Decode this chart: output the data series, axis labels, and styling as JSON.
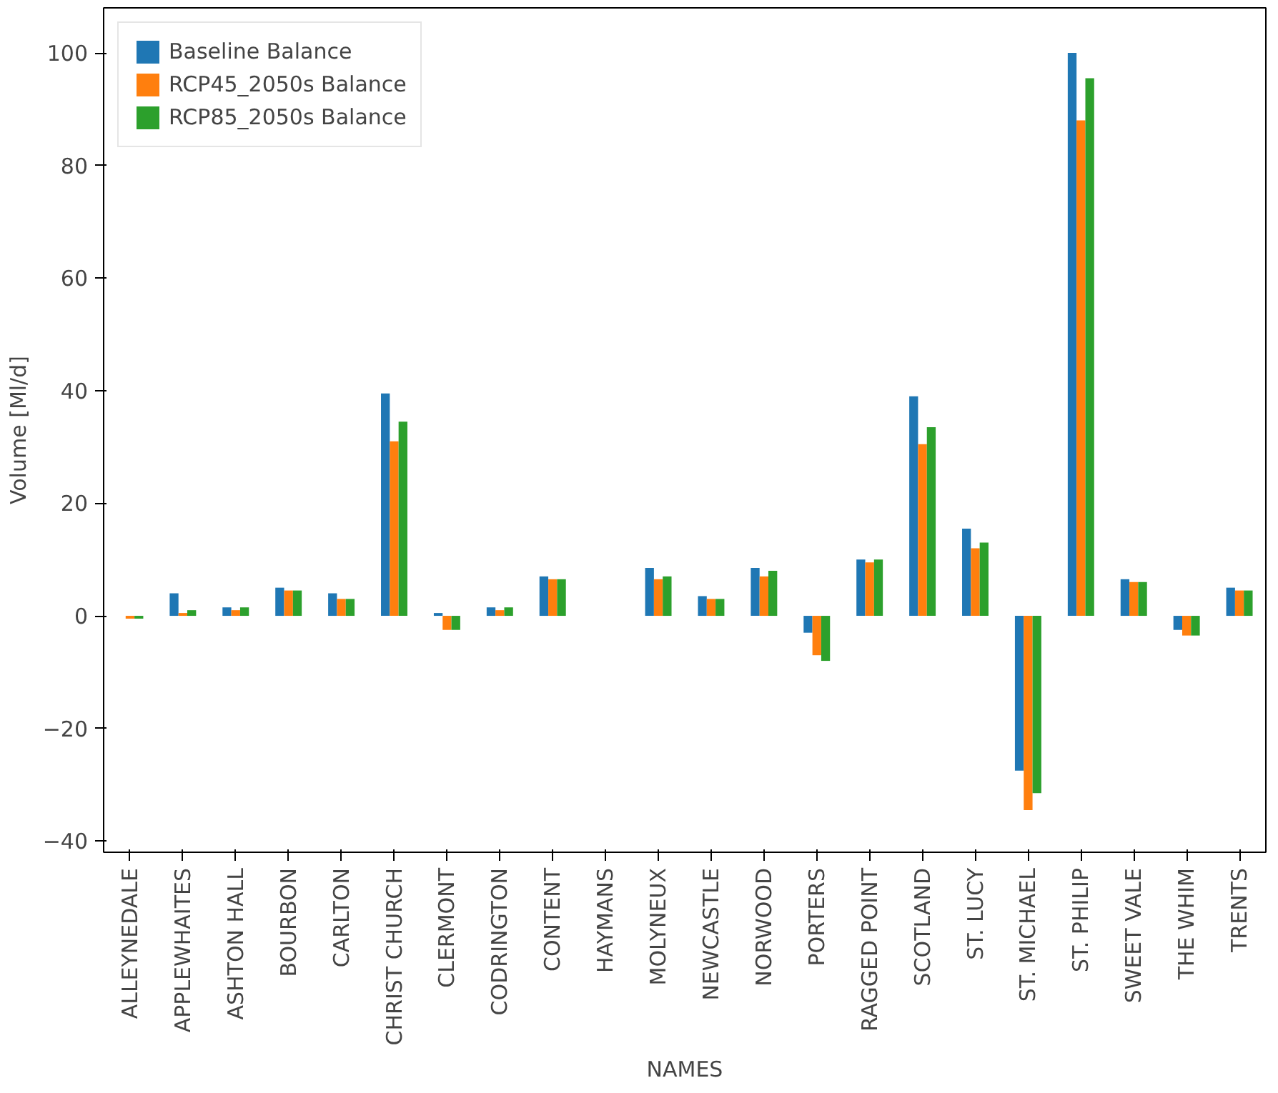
{
  "chart_data": {
    "type": "bar",
    "xlabel": "NAMES",
    "ylabel": "Volume [Ml/d]",
    "categories": [
      "ALLEYNEDALE",
      "APPLEWHAITES",
      "ASHTON HALL",
      "BOURBON",
      "CARLTON",
      "CHRIST CHURCH",
      "CLERMONT",
      "CODRINGTON",
      "CONTENT",
      "HAYMANS",
      "MOLYNEUX",
      "NEWCASTLE",
      "NORWOOD",
      "PORTERS",
      "RAGGED POINT",
      "SCOTLAND",
      "ST. LUCY",
      "ST. MICHAEL",
      "ST. PHILIP",
      "SWEET VALE",
      "THE WHIM",
      "TRENTS"
    ],
    "series": [
      {
        "name": "Baseline Balance",
        "color": "#1f77b4",
        "values": [
          0,
          4,
          1.5,
          5,
          4,
          39.5,
          0.5,
          1.5,
          7,
          0,
          8.5,
          3.5,
          8.5,
          -3,
          10,
          39,
          15.5,
          -27.5,
          100,
          6.5,
          -2.5,
          5
        ]
      },
      {
        "name": "RCP45_2050s Balance",
        "color": "#ff7f0e",
        "values": [
          -0.5,
          0.5,
          1,
          4.5,
          3,
          31,
          -2.5,
          1,
          6.5,
          0,
          6.5,
          3,
          7,
          -7,
          9.5,
          30.5,
          12,
          -34.5,
          88,
          6,
          -3.5,
          4.5
        ]
      },
      {
        "name": "RCP85_2050s Balance",
        "color": "#2ca02c",
        "values": [
          -0.5,
          1,
          1.5,
          4.5,
          3,
          34.5,
          -2.5,
          1.5,
          6.5,
          0,
          7,
          3,
          8,
          -8,
          10,
          33.5,
          13,
          -31.5,
          95.5,
          6,
          -3.5,
          4.5
        ]
      }
    ],
    "ylim": [
      -42,
      108
    ],
    "yticks": [
      -40,
      -20,
      0,
      20,
      40,
      60,
      80,
      100
    ],
    "grid": false,
    "legend": "top left"
  }
}
